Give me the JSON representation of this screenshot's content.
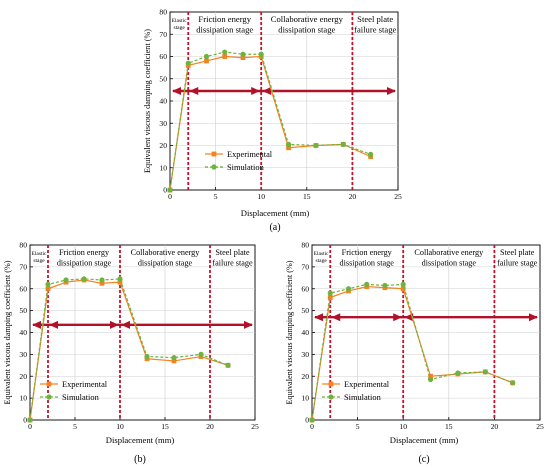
{
  "chart_data": [
    {
      "type": "line",
      "panel": "(a)",
      "xlabel": "Displacement (mm)",
      "ylabel": "Equivalent viscous damping coefficient (%)",
      "xlim": [
        0,
        25
      ],
      "ylim": [
        0,
        80
      ],
      "xticks": [
        "0",
        "5",
        "10",
        "15",
        "20",
        "25"
      ],
      "yticks": [
        "0",
        "10",
        "20",
        "30",
        "40",
        "50",
        "60",
        "70",
        "80"
      ],
      "grid": true,
      "legend": "bottom-right",
      "stage_lines": [
        2,
        10,
        20
      ],
      "stages": [
        {
          "label": [
            "Elastic",
            "stage"
          ]
        },
        {
          "label": [
            "Friction energy",
            "dissipation stage"
          ]
        },
        {
          "label": [
            "Collaborative energy",
            "dissipation stage"
          ]
        },
        {
          "label": [
            "Steel plate",
            "failure stage"
          ]
        }
      ],
      "reference_y": 44.5,
      "series": [
        {
          "name": "Experimental",
          "color": "#f58220",
          "marker": "square",
          "x": [
            0,
            2,
            4,
            6,
            8,
            10,
            13,
            16,
            19,
            22
          ],
          "y": [
            0,
            56,
            58,
            60,
            59.5,
            60,
            19,
            20,
            20.5,
            15
          ]
        },
        {
          "name": "Simulation",
          "color": "#6cb33f",
          "marker": "circle",
          "x": [
            0,
            2,
            4,
            6,
            8,
            10,
            13,
            16,
            19,
            22
          ],
          "y": [
            0,
            57,
            60,
            62,
            61,
            61,
            20.5,
            20,
            20.5,
            16
          ]
        }
      ]
    },
    {
      "type": "line",
      "panel": "(b)",
      "xlabel": "Displacement (mm)",
      "ylabel": "Equivalent viscous damping coefficient (%)",
      "xlim": [
        0,
        25
      ],
      "ylim": [
        0,
        80
      ],
      "xticks": [
        "0",
        "5",
        "10",
        "15",
        "20",
        "25"
      ],
      "yticks": [
        "0",
        "10",
        "20",
        "30",
        "40",
        "50",
        "60",
        "70",
        "80"
      ],
      "grid": true,
      "legend": "bottom-left",
      "stage_lines": [
        2,
        10,
        20
      ],
      "stages": [
        {
          "label": [
            "Elastic",
            "stage"
          ]
        },
        {
          "label": [
            "Friction energy",
            "dissipation stage"
          ]
        },
        {
          "label": [
            "Collaborative energy",
            "dissipation stage"
          ]
        },
        {
          "label": [
            "Steel plate",
            "failure stage"
          ]
        }
      ],
      "reference_y": 43.5,
      "series": [
        {
          "name": "Experimental",
          "color": "#f58220",
          "marker": "square",
          "x": [
            0,
            2,
            4,
            6,
            8,
            10,
            13,
            16,
            19,
            22
          ],
          "y": [
            0,
            60,
            63,
            64,
            62.5,
            63,
            28,
            27,
            29,
            25
          ]
        },
        {
          "name": "Simulation",
          "color": "#6cb33f",
          "marker": "circle",
          "x": [
            0,
            2,
            4,
            6,
            8,
            10,
            13,
            16,
            19,
            22
          ],
          "y": [
            0,
            62,
            64,
            64.5,
            64,
            64.5,
            29,
            28.5,
            30,
            25
          ]
        }
      ]
    },
    {
      "type": "line",
      "panel": "(c)",
      "xlabel": "Displacement (mm)",
      "ylabel": "Equivalent viscous damping coefficient (%)",
      "xlim": [
        0,
        25
      ],
      "ylim": [
        0,
        80
      ],
      "xticks": [
        "0",
        "5",
        "10",
        "15",
        "20",
        "25"
      ],
      "yticks": [
        "0",
        "10",
        "20",
        "30",
        "40",
        "50",
        "60",
        "70",
        "80"
      ],
      "grid": true,
      "legend": "bottom-left",
      "stage_lines": [
        2,
        10,
        20
      ],
      "stages": [
        {
          "label": [
            "Elastic",
            "stage"
          ]
        },
        {
          "label": [
            "Friction energy",
            "dissipation stage"
          ]
        },
        {
          "label": [
            "Collaborative energy",
            "dissipation stage"
          ]
        },
        {
          "label": [
            "Steel plate",
            "failure stage"
          ]
        }
      ],
      "reference_y": 47,
      "series": [
        {
          "name": "Experimental",
          "color": "#f58220",
          "marker": "square",
          "x": [
            0,
            2,
            4,
            6,
            8,
            10,
            13,
            16,
            19,
            22
          ],
          "y": [
            0,
            56,
            59,
            61,
            60.5,
            60,
            20,
            21,
            22,
            17
          ]
        },
        {
          "name": "Simulation",
          "color": "#6cb33f",
          "marker": "circle",
          "x": [
            0,
            2,
            4,
            6,
            8,
            10,
            13,
            16,
            19,
            22
          ],
          "y": [
            0,
            58,
            60,
            62,
            61.5,
            62,
            18.5,
            21.5,
            22,
            17
          ]
        }
      ]
    }
  ]
}
